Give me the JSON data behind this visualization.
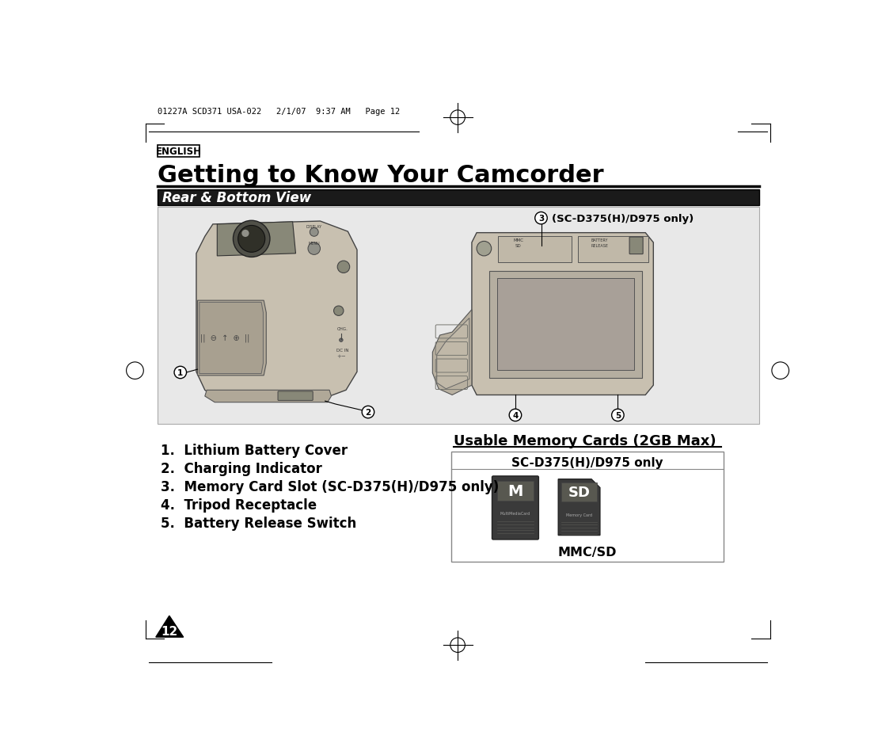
{
  "page_bg": "#ffffff",
  "header_text": "01227A SCD371 USA-022   2/1/07  9:37 AM   Page 12",
  "english_label": "ENGLISH",
  "title": "Getting to Know Your Camcorder",
  "section_header": "Rear & Bottom View",
  "section_header_bg": "#1a1a1a",
  "section_header_color": "#ffffff",
  "diagram_bg": "#e8e8e8",
  "items": [
    "1.  Lithium Battery Cover",
    "2.  Charging Indicator",
    "3.  Memory Card Slot (SC-D375(H)/D975 only)",
    "4.  Tripod Receptacle",
    "5.  Battery Release Switch"
  ],
  "usable_title": "Usable Memory Cards (2GB Max)",
  "box_header": "SC-D375(H)/D975 only",
  "box_label": "MMC/SD",
  "page_number": "12"
}
